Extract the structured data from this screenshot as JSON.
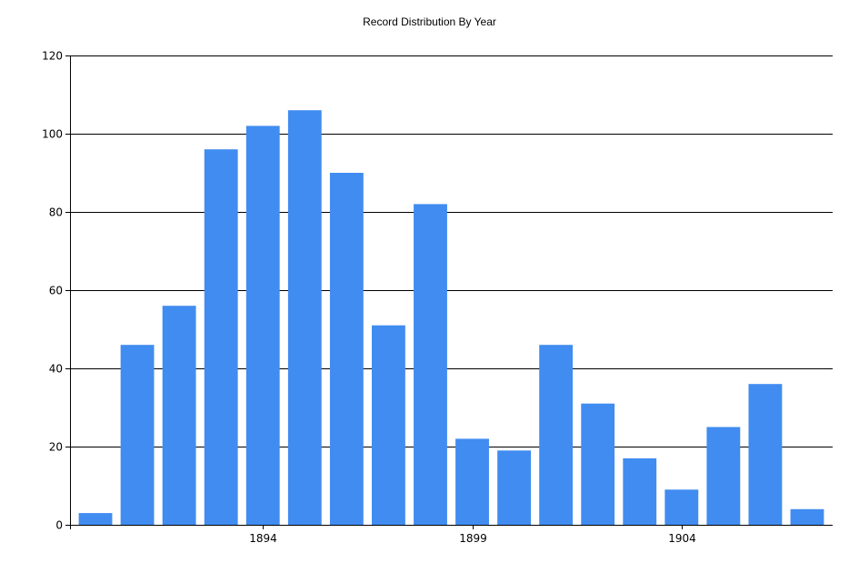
{
  "chart_data": {
    "type": "bar",
    "title": "Record Distribution By Year",
    "xlabel": "",
    "ylabel": "",
    "x": [
      1890,
      1891,
      1892,
      1893,
      1894,
      1895,
      1896,
      1897,
      1898,
      1899,
      1900,
      1901,
      1902,
      1903,
      1904,
      1905,
      1906,
      1907
    ],
    "values": [
      3,
      46,
      56,
      96,
      102,
      106,
      90,
      51,
      82,
      22,
      19,
      46,
      31,
      17,
      9,
      25,
      36,
      4
    ],
    "x_ticks": [
      1894,
      1899,
      1904
    ],
    "y_ticks": [
      0,
      20,
      40,
      60,
      80,
      100,
      120
    ],
    "ylim": [
      0,
      120
    ],
    "grid": true,
    "bar_color": "#418CF0",
    "gridline_color": "#000000"
  }
}
